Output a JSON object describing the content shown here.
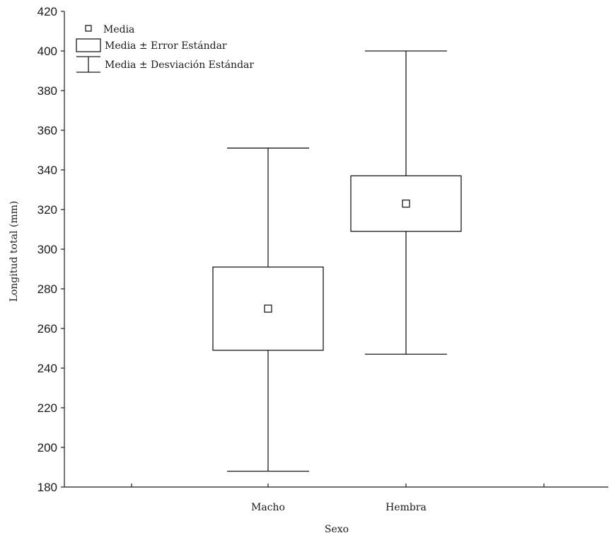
{
  "chart_data": {
    "type": "box",
    "xlabel": "Sexo",
    "ylabel": "Longitud total (mm)",
    "ylim": [
      180,
      420
    ],
    "yticks": [
      180,
      200,
      220,
      240,
      260,
      280,
      300,
      320,
      340,
      360,
      380,
      400,
      420
    ],
    "categories": [
      "Macho",
      "Hembra"
    ],
    "groups": [
      {
        "category": "Macho",
        "mean": 270,
        "se_low": 249,
        "se_high": 291,
        "sd_low": 188,
        "sd_high": 351
      },
      {
        "category": "Hembra",
        "mean": 323,
        "se_low": 309,
        "se_high": 337,
        "sd_low": 247,
        "sd_high": 400
      }
    ],
    "legend": {
      "position": "top-left",
      "items": [
        {
          "symbol": "mean-marker",
          "label": "Media"
        },
        {
          "symbol": "box",
          "label": "Media ± Error Estándar"
        },
        {
          "symbol": "whisker",
          "label": "Media ± Desviación Estándar"
        }
      ]
    },
    "grid": false
  }
}
